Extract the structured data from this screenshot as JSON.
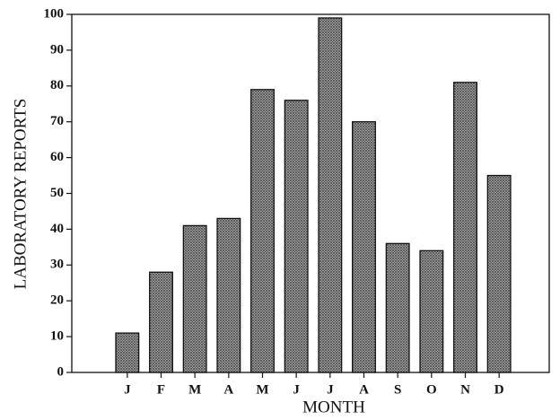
{
  "chart_data": {
    "type": "bar",
    "x_label": "MONTH",
    "y_label": "LABORATORY REPORTS",
    "categories": [
      "J",
      "F",
      "M",
      "A",
      "M",
      "J",
      "J",
      "A",
      "S",
      "O",
      "N",
      "D"
    ],
    "values": [
      11,
      28,
      41,
      43,
      79,
      76,
      99,
      70,
      36,
      34,
      81,
      55
    ],
    "color": "#4a4a4a",
    "ylim": [
      0,
      100
    ],
    "yticks": [
      0,
      10,
      20,
      30,
      40,
      50,
      60,
      70,
      80,
      90,
      100
    ]
  }
}
